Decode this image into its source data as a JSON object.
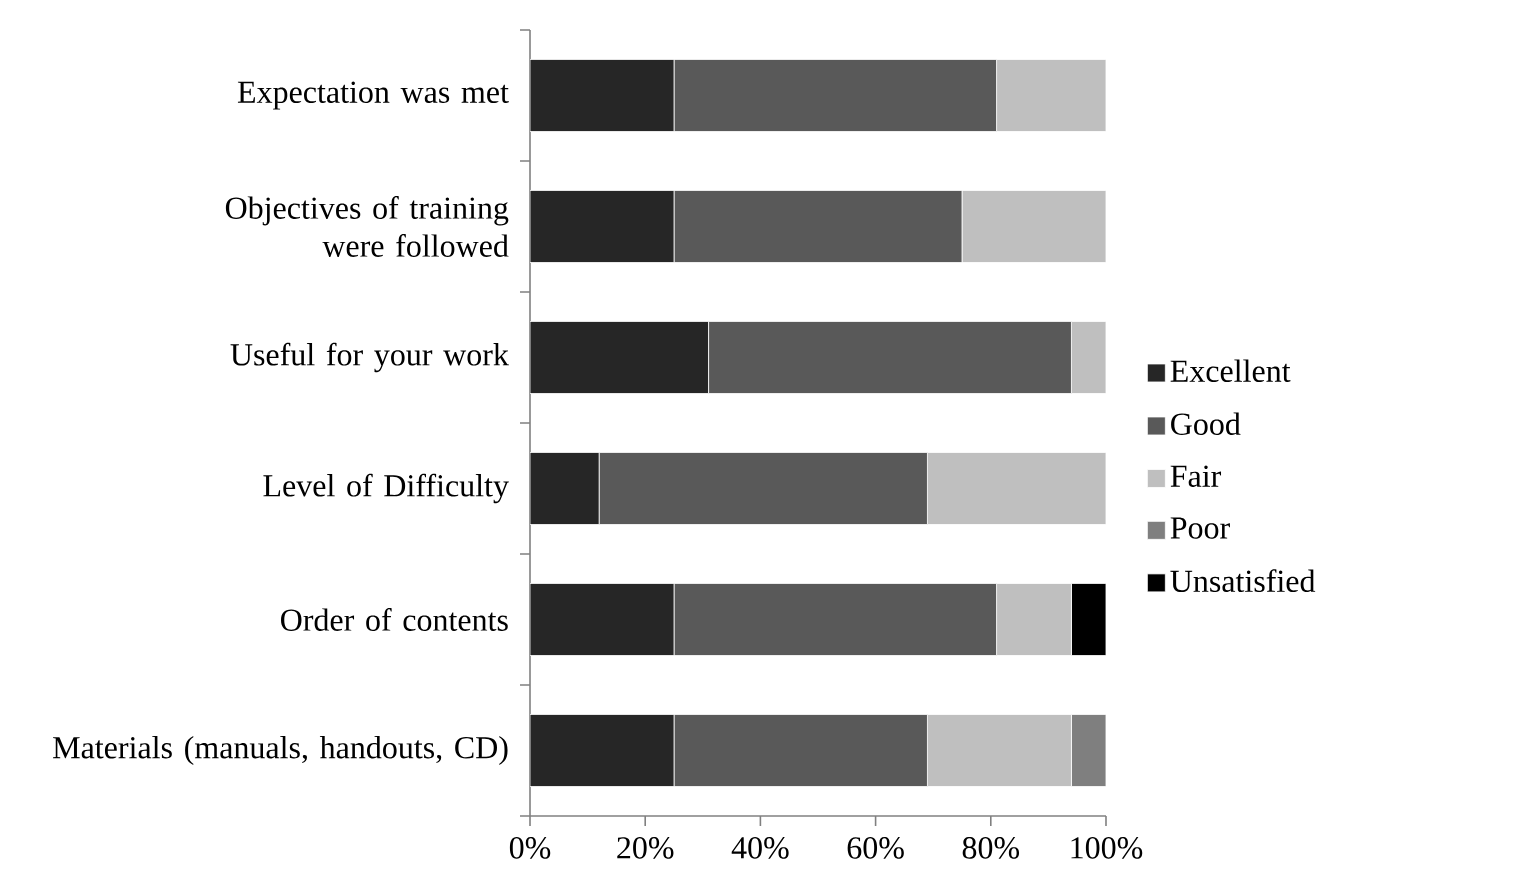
{
  "chart_data": {
    "type": "bar",
    "orientation": "horizontal",
    "stacked": true,
    "categories": [
      "Expectation was met",
      "Objectives of training were followed",
      "Useful for your work",
      "Level of Difficulty",
      "Order of contents",
      "Materials (manuals, handouts, CD)"
    ],
    "series": [
      {
        "name": "Excellent",
        "color": "#262626",
        "values": [
          25,
          25,
          31,
          12,
          25,
          25
        ]
      },
      {
        "name": "Good",
        "color": "#595959",
        "values": [
          56,
          50,
          63,
          57,
          56,
          44
        ]
      },
      {
        "name": "Fair",
        "color": "#bfbfbf",
        "values": [
          19,
          25,
          6,
          31,
          13,
          25
        ]
      },
      {
        "name": "Poor",
        "color": "#7f7f7f",
        "values": [
          0,
          0,
          0,
          0,
          0,
          6
        ]
      },
      {
        "name": "Unsatisfied",
        "color": "#000000",
        "values": [
          0,
          0,
          0,
          0,
          6,
          0
        ]
      }
    ],
    "xlim": [
      0,
      100
    ],
    "xticks": [
      {
        "value": 0,
        "label": "0%"
      },
      {
        "value": 20,
        "label": "20%"
      },
      {
        "value": 40,
        "label": "40%"
      },
      {
        "value": 60,
        "label": "60%"
      },
      {
        "value": 80,
        "label": "80%"
      },
      {
        "value": 100,
        "label": "100%"
      }
    ],
    "grid": false,
    "legend": "right"
  }
}
